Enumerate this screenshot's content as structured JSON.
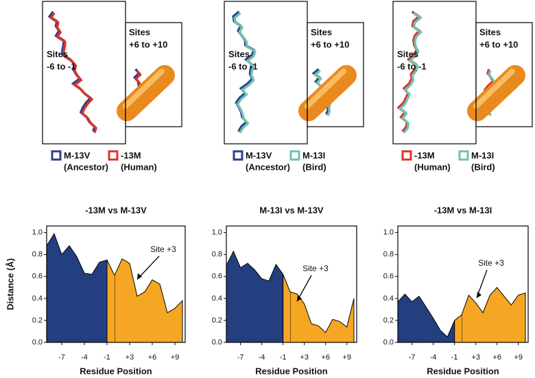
{
  "structures": [
    {
      "left_sites": [
        "Sites",
        "-6 to -1"
      ],
      "right_sites": [
        "Sites",
        "+6 to +10"
      ],
      "legend": [
        {
          "name": "M-13V",
          "sub": "(Ancestor)",
          "color": "#2e3f8f"
        },
        {
          "name": "-13M",
          "sub": "(Human)",
          "color": "#d9342b"
        }
      ]
    },
    {
      "left_sites": [
        "Sites",
        "-6 to -1"
      ],
      "right_sites": [
        "Sites",
        "+6 to +10"
      ],
      "legend": [
        {
          "name": "M-13V",
          "sub": "(Ancestor)",
          "color": "#2e3f8f"
        },
        {
          "name": "M-13I",
          "sub": "(Bird)",
          "color": "#6fc2b0"
        }
      ]
    },
    {
      "left_sites": [
        "Sites",
        "-6 to -1"
      ],
      "right_sites": [
        "Sites",
        "+6 to +10"
      ],
      "legend": [
        {
          "name": "-13M",
          "sub": "(Human)",
          "color": "#d9342b"
        },
        {
          "name": "M-13I",
          "sub": "(Bird)",
          "color": "#6fc2b0"
        }
      ]
    }
  ],
  "ylabel": "Distance (Å)",
  "chart_data": [
    {
      "type": "area",
      "title": "-13M vs M-13V",
      "xlabel": "Residue Position",
      "annotation": "Site +3",
      "categories": [
        null,
        null,
        "-7",
        null,
        null,
        "-4",
        null,
        null,
        "-1",
        null,
        null,
        "+3",
        null,
        null,
        "+6",
        null,
        null,
        "+9",
        null
      ],
      "series": [
        {
          "color": "#233f7f",
          "values": [
            0.88,
            0.99,
            0.8,
            0.88,
            0.78,
            0.63,
            0.62,
            0.73,
            0.75,
            null,
            null,
            null,
            null,
            null,
            null,
            null,
            null,
            null,
            null
          ]
        },
        {
          "color": "#f5a623",
          "values": [
            null,
            null,
            null,
            null,
            null,
            null,
            null,
            null,
            null,
            0.61,
            0.76,
            0.72,
            0.42,
            0.46,
            0.57,
            0.53,
            0.27,
            0.31,
            0.38
          ]
        }
      ],
      "ylim": [
        0,
        1.06
      ],
      "yticks": [
        {
          "value": 0,
          "label": "0.0"
        },
        {
          "value": 0.2,
          "label": "0.2"
        },
        {
          "value": 0.4,
          "label": "0.4"
        },
        {
          "value": 0.6,
          "label": "0.6"
        },
        {
          "value": 0.8,
          "label": "0.8"
        },
        {
          "value": 1,
          "label": "1.0"
        }
      ]
    },
    {
      "type": "area",
      "title": "M-13I vs M-13V",
      "xlabel": "Residue Position",
      "annotation": "Site +3",
      "categories": [
        null,
        null,
        "-7",
        null,
        null,
        "-4",
        null,
        null,
        "-1",
        null,
        null,
        "+3",
        null,
        null,
        "+6",
        null,
        null,
        "+9",
        null
      ],
      "series": [
        {
          "color": "#233f7f",
          "values": [
            0.7,
            0.83,
            0.68,
            0.72,
            0.66,
            0.58,
            0.56,
            0.71,
            0.62,
            null,
            null,
            null,
            null,
            null,
            null,
            null,
            null,
            null,
            null
          ]
        },
        {
          "color": "#f5a623",
          "values": [
            null,
            null,
            null,
            null,
            null,
            null,
            null,
            null,
            null,
            0.46,
            0.44,
            0.35,
            0.17,
            0.15,
            0.09,
            0.21,
            0.19,
            0.14,
            0.4
          ]
        }
      ],
      "ylim": [
        0,
        1.06
      ],
      "yticks": [
        {
          "value": 0,
          "label": "0.0"
        },
        {
          "value": 0.2,
          "label": "0.2"
        },
        {
          "value": 0.4,
          "label": "0.4"
        },
        {
          "value": 0.6,
          "label": "0.6"
        },
        {
          "value": 0.8,
          "label": "0.8"
        },
        {
          "value": 1,
          "label": "1.0"
        }
      ]
    },
    {
      "type": "area",
      "title": "-13M vs M-13I",
      "xlabel": "Residue Position",
      "annotation": "Site +3",
      "categories": [
        null,
        null,
        "-7",
        null,
        null,
        "-4",
        null,
        null,
        "-1",
        null,
        null,
        "+3",
        null,
        null,
        "+6",
        null,
        null,
        "+9",
        null
      ],
      "series": [
        {
          "color": "#233f7f",
          "values": [
            0.37,
            0.44,
            0.37,
            0.42,
            0.32,
            0.22,
            0.11,
            0.05,
            0.2,
            null,
            null,
            null,
            null,
            null,
            null,
            null,
            null,
            null,
            null
          ]
        },
        {
          "color": "#f5a623",
          "values": [
            null,
            null,
            null,
            null,
            null,
            null,
            null,
            null,
            null,
            0.25,
            0.43,
            0.36,
            0.27,
            0.43,
            0.5,
            0.42,
            0.34,
            0.43,
            0.45
          ]
        }
      ],
      "ylim": [
        0,
        1.06
      ],
      "yticks": [
        {
          "value": 0,
          "label": "0.0"
        },
        {
          "value": 0.2,
          "label": "0.2"
        },
        {
          "value": 0.4,
          "label": "0.4"
        },
        {
          "value": 0.6,
          "label": "0.6"
        },
        {
          "value": 0.8,
          "label": "0.8"
        },
        {
          "value": 1,
          "label": "1.0"
        }
      ]
    }
  ]
}
